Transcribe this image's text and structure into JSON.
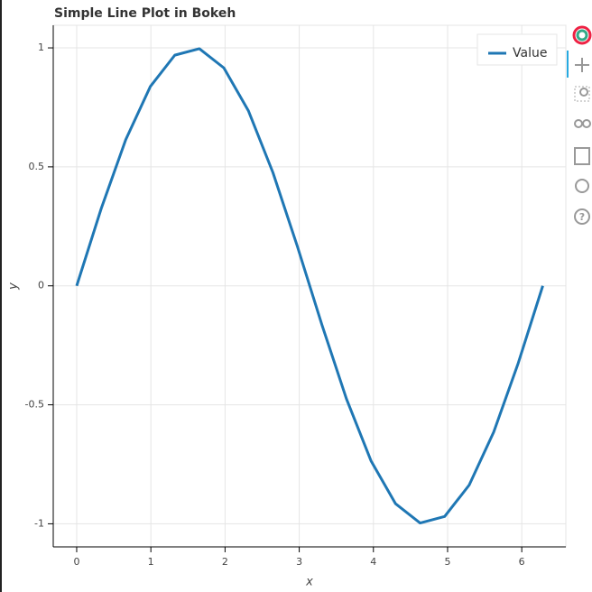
{
  "chart_data": {
    "type": "line",
    "title": "Simple Line Plot in Bokeh",
    "x_label": "x",
    "y_label": "y",
    "x": [
      0,
      0.3307,
      0.6614,
      0.9921,
      1.3228,
      1.6535,
      1.9842,
      2.3149,
      2.6456,
      2.9762,
      3.3069,
      3.6376,
      3.9683,
      4.299,
      4.6297,
      4.9604,
      5.2911,
      5.6218,
      5.9525,
      6.2832
    ],
    "series": [
      {
        "name": "Value",
        "color": "#1f77b4",
        "values": [
          0,
          0.3247,
          0.6142,
          0.8372,
          0.9694,
          0.9966,
          0.9158,
          0.7357,
          0.4759,
          0.1646,
          -0.1646,
          -0.4759,
          -0.7357,
          -0.9158,
          -0.9966,
          -0.9694,
          -0.8372,
          -0.6142,
          -0.3247,
          0
        ]
      }
    ],
    "xlim": [
      -0.316,
      6.594
    ],
    "ylim": [
      -1.097,
      1.095
    ],
    "xticks": [
      0,
      1,
      2,
      3,
      4,
      5,
      6
    ],
    "yticks": [
      -1,
      -0.5,
      0,
      0.5,
      1
    ],
    "grid": true,
    "legend_position": "top-right"
  }
}
